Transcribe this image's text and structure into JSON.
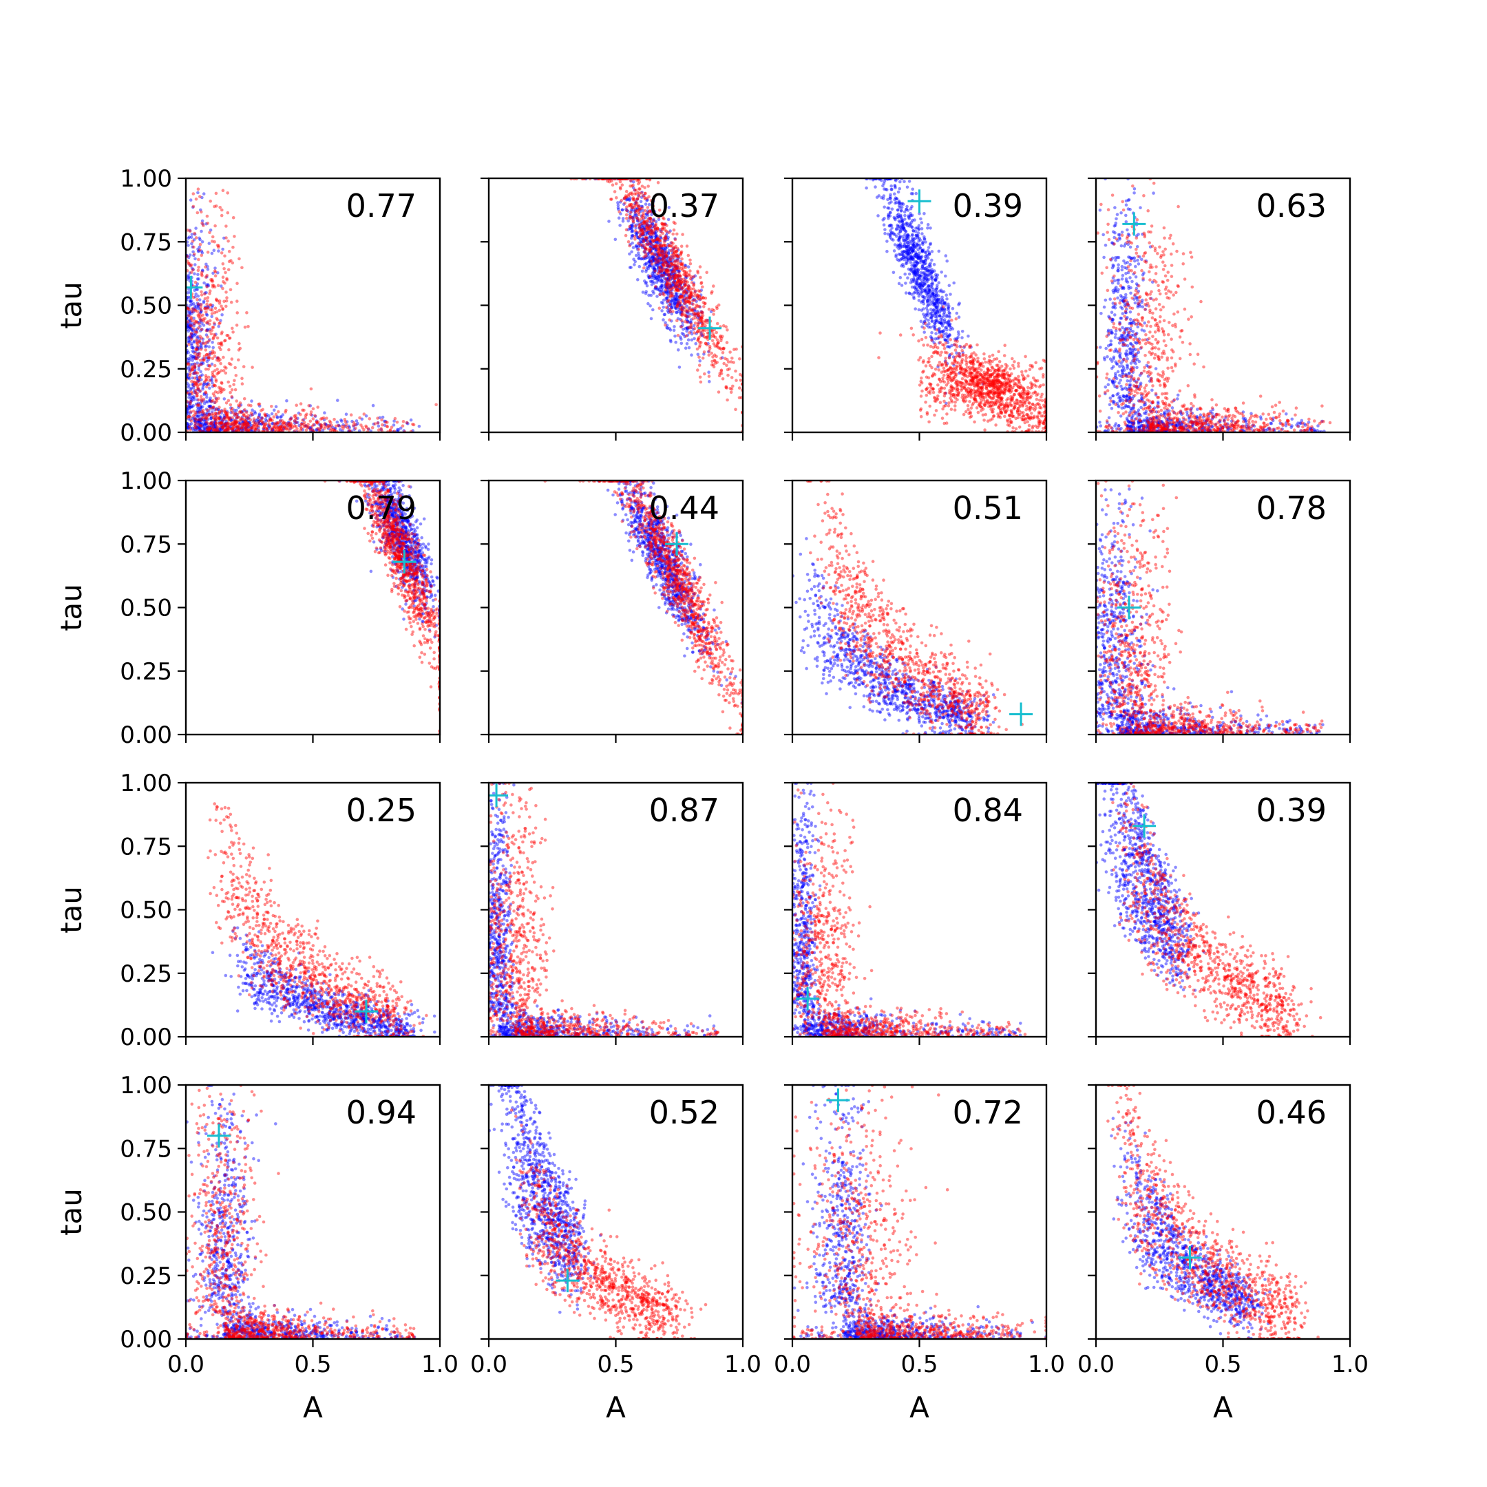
{
  "chart_data": {
    "type": "scatter",
    "layout": "4x4 grid of subplots, shared axes",
    "xlabel": "A",
    "ylabel": "tau",
    "xlim": [
      0,
      1
    ],
    "ylim": [
      0,
      1
    ],
    "xticks": [
      "0.0",
      "0.5",
      "1.0"
    ],
    "yticks": [
      "0.00",
      "0.25",
      "0.50",
      "0.75",
      "1.00"
    ],
    "grid": false,
    "series_colors": {
      "series_1": "#0000ff",
      "series_2": "#ff0000",
      "marker": "#17becf"
    },
    "panels": [
      {
        "label": "0.77",
        "marker": [
          0.02,
          0.57
        ],
        "shape": "L",
        "series_1": {
          "center": [
            0.03,
            0.06
          ],
          "spread": [
            0.07,
            0.1
          ],
          "tail": "x"
        },
        "series_2": {
          "center": [
            0.08,
            0.22
          ],
          "spread": [
            0.1,
            0.25
          ],
          "tail": "y"
        }
      },
      {
        "label": "0.37",
        "marker": [
          0.87,
          0.41
        ],
        "shape": "diag",
        "series_1": {
          "center": [
            0.68,
            0.65
          ],
          "spread": [
            0.07,
            0.12
          ]
        },
        "series_2": {
          "center": [
            0.72,
            0.65
          ],
          "spread": [
            0.12,
            0.2
          ]
        }
      },
      {
        "label": "0.39",
        "marker": [
          0.5,
          0.91
        ],
        "shape": "diag",
        "series_1": {
          "center": [
            0.5,
            0.65
          ],
          "spread": [
            0.07,
            0.15
          ]
        },
        "series_2": {
          "center": [
            0.78,
            0.18
          ],
          "spread": [
            0.12,
            0.06
          ],
          "extra": true
        }
      },
      {
        "label": "0.63",
        "marker": [
          0.15,
          0.82
        ],
        "shape": "L",
        "series_1": {
          "center": [
            0.12,
            0.45
          ],
          "spread": [
            0.06,
            0.25
          ]
        },
        "series_2": {
          "center": [
            0.2,
            0.35
          ],
          "spread": [
            0.12,
            0.25
          ]
        }
      },
      {
        "label": "0.79",
        "marker": [
          0.86,
          0.68
        ],
        "shape": "diag",
        "series_1": {
          "center": [
            0.85,
            0.78
          ],
          "spread": [
            0.06,
            0.12
          ]
        },
        "series_2": {
          "center": [
            0.85,
            0.7
          ],
          "spread": [
            0.08,
            0.18
          ]
        }
      },
      {
        "label": "0.44",
        "marker": [
          0.74,
          0.75
        ],
        "shape": "diag",
        "series_1": {
          "center": [
            0.68,
            0.7
          ],
          "spread": [
            0.08,
            0.14
          ]
        },
        "series_2": {
          "center": [
            0.75,
            0.6
          ],
          "spread": [
            0.12,
            0.22
          ]
        }
      },
      {
        "label": "0.51",
        "marker": [
          0.9,
          0.08
        ],
        "shape": "curve",
        "series_1": {
          "center": [
            0.4,
            0.2
          ],
          "spread": [
            0.2,
            0.15
          ]
        },
        "series_2": {
          "center": [
            0.45,
            0.3
          ],
          "spread": [
            0.2,
            0.25
          ]
        }
      },
      {
        "label": "0.78",
        "marker": [
          0.13,
          0.5
        ],
        "shape": "L",
        "series_1": {
          "center": [
            0.08,
            0.3
          ],
          "spread": [
            0.08,
            0.25
          ]
        },
        "series_2": {
          "center": [
            0.15,
            0.35
          ],
          "spread": [
            0.1,
            0.28
          ]
        }
      },
      {
        "label": "0.25",
        "marker": [
          0.71,
          0.1
        ],
        "shape": "curve",
        "series_1": {
          "center": [
            0.55,
            0.12
          ],
          "spread": [
            0.2,
            0.12
          ]
        },
        "series_2": {
          "center": [
            0.5,
            0.25
          ],
          "spread": [
            0.22,
            0.22
          ]
        }
      },
      {
        "label": "0.87",
        "marker": [
          0.03,
          0.95
        ],
        "shape": "L",
        "series_1": {
          "center": [
            0.04,
            0.4
          ],
          "spread": [
            0.04,
            0.3
          ]
        },
        "series_2": {
          "center": [
            0.1,
            0.3
          ],
          "spread": [
            0.1,
            0.3
          ]
        }
      },
      {
        "label": "0.84",
        "marker": [
          0.06,
          0.15
        ],
        "shape": "L",
        "series_1": {
          "center": [
            0.04,
            0.45
          ],
          "spread": [
            0.04,
            0.3
          ]
        },
        "series_2": {
          "center": [
            0.12,
            0.35
          ],
          "spread": [
            0.1,
            0.3
          ]
        }
      },
      {
        "label": "0.39",
        "marker": [
          0.19,
          0.83
        ],
        "shape": "curve",
        "series_1": {
          "center": [
            0.2,
            0.65
          ],
          "spread": [
            0.08,
            0.18
          ]
        },
        "series_2": {
          "center": [
            0.45,
            0.3
          ],
          "spread": [
            0.2,
            0.22
          ]
        }
      },
      {
        "label": "0.94",
        "marker": [
          0.13,
          0.8
        ],
        "shape": "L",
        "series_1": {
          "center": [
            0.15,
            0.45
          ],
          "spread": [
            0.08,
            0.25
          ]
        },
        "series_2": {
          "center": [
            0.15,
            0.45
          ],
          "spread": [
            0.1,
            0.28
          ]
        }
      },
      {
        "label": "0.52",
        "marker": [
          0.31,
          0.23
        ],
        "shape": "curve",
        "series_1": {
          "center": [
            0.22,
            0.6
          ],
          "spread": [
            0.08,
            0.22
          ]
        },
        "series_2": {
          "center": [
            0.45,
            0.25
          ],
          "spread": [
            0.18,
            0.2
          ]
        }
      },
      {
        "label": "0.72",
        "marker": [
          0.18,
          0.94
        ],
        "shape": "L",
        "series_1": {
          "center": [
            0.2,
            0.5
          ],
          "spread": [
            0.08,
            0.28
          ]
        },
        "series_2": {
          "center": [
            0.25,
            0.4
          ],
          "spread": [
            0.15,
            0.3
          ]
        }
      },
      {
        "label": "0.46",
        "marker": [
          0.37,
          0.32
        ],
        "shape": "curve",
        "series_1": {
          "center": [
            0.38,
            0.3
          ],
          "spread": [
            0.15,
            0.15
          ]
        },
        "series_2": {
          "center": [
            0.45,
            0.3
          ],
          "spread": [
            0.22,
            0.25
          ]
        }
      }
    ]
  }
}
